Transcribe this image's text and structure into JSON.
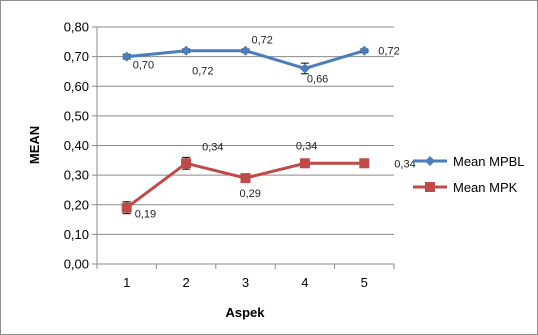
{
  "chart_data": {
    "type": "line",
    "title": "",
    "xlabel": "Aspek",
    "ylabel": "MEAN",
    "categories": [
      "1",
      "2",
      "3",
      "4",
      "5"
    ],
    "ylim": [
      0,
      0.8
    ],
    "y_ticks": [
      "0,00",
      "0,10",
      "0,20",
      "0,30",
      "0,40",
      "0,50",
      "0,60",
      "0,70",
      "0,80"
    ],
    "grid": true,
    "legend_position": "right",
    "series": [
      {
        "name": "Mean MPBL",
        "color": "#4a7ebb",
        "marker": "diamond",
        "values": [
          0.7,
          0.72,
          0.72,
          0.66,
          0.72
        ],
        "labels": [
          "0,70",
          "0,72",
          "0,72",
          "0,66",
          "0,72"
        ],
        "error": [
          0.008,
          0.006,
          0.006,
          0.018,
          0.006
        ]
      },
      {
        "name": "Mean MPK",
        "color": "#be4b48",
        "marker": "square",
        "values": [
          0.19,
          0.34,
          0.29,
          0.34,
          0.34
        ],
        "labels": [
          "0,19",
          "0,34",
          "0,29",
          "0,34",
          "0,34"
        ],
        "error": [
          0.02,
          0.02,
          0.005,
          0.012,
          0.006
        ]
      }
    ]
  }
}
